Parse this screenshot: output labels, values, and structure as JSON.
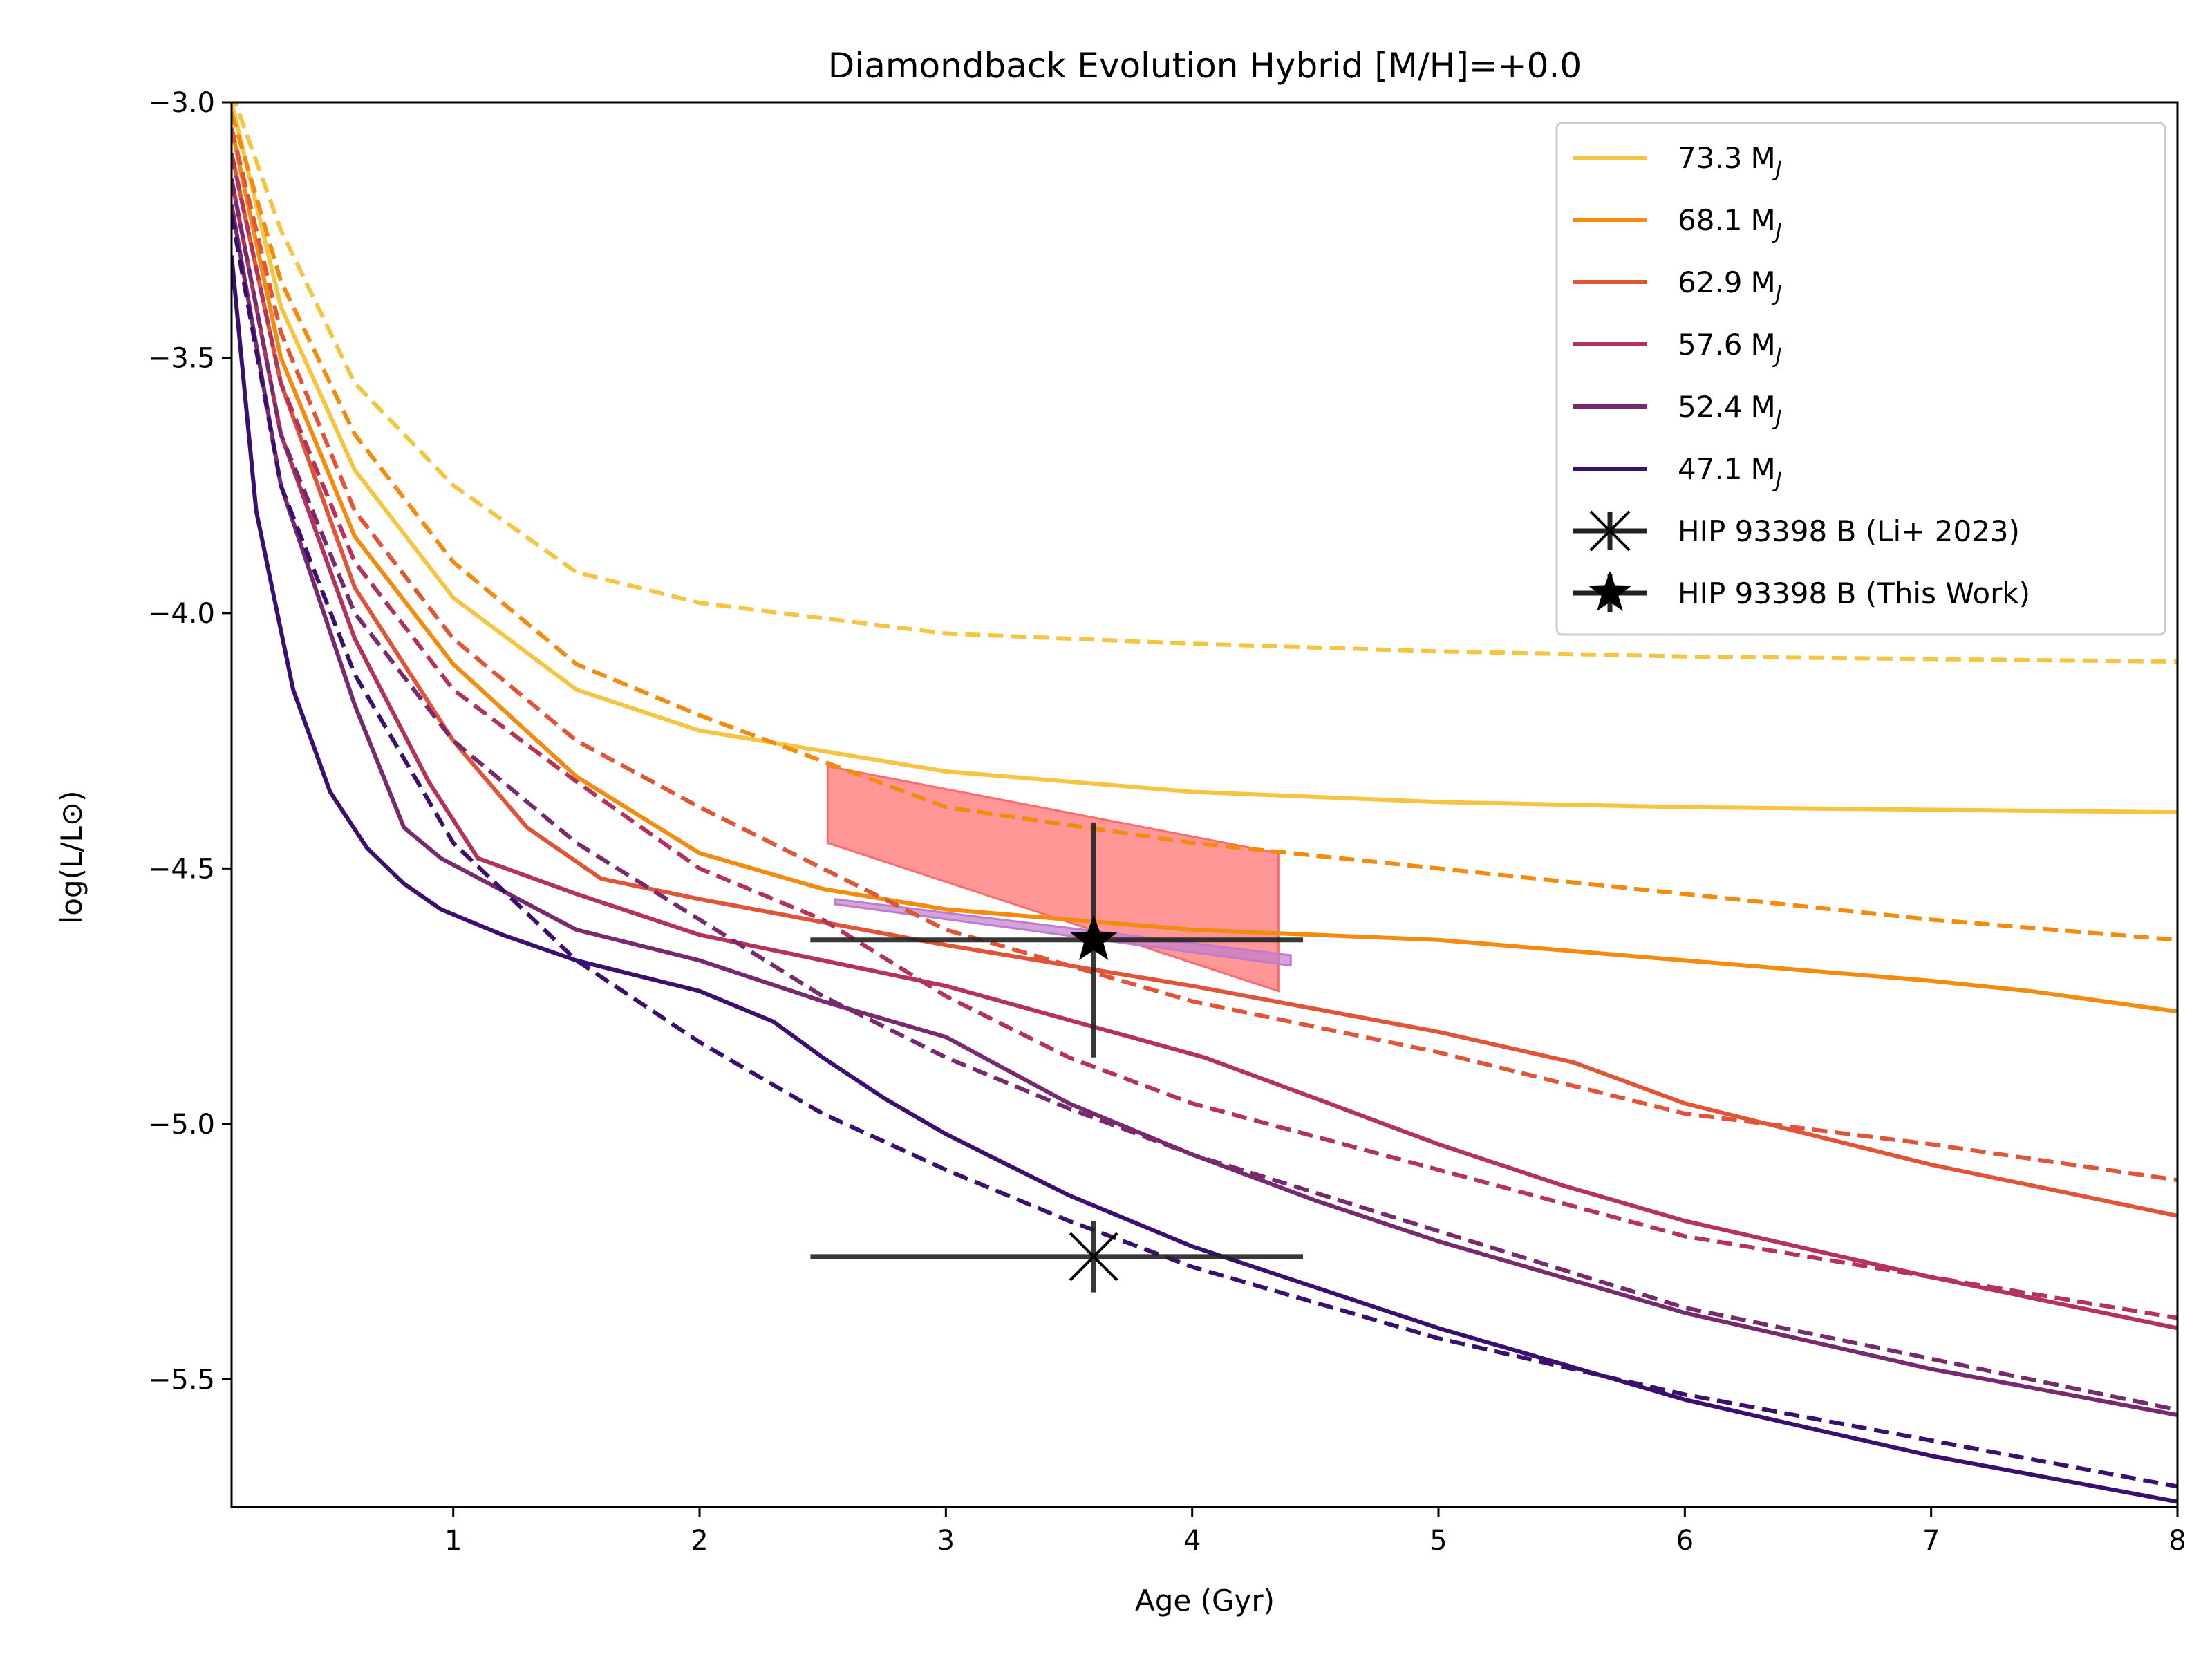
{
  "chart_data": {
    "type": "line",
    "title": "Diamondback Evolution Hybrid [M/H]=+0.0",
    "xlabel": "Age (Gyr)",
    "ylabel": "log(L/L⊙)",
    "xlim": [
      0.1,
      8
    ],
    "ylim": [
      -5.75,
      -3.0
    ],
    "xticks": [
      1,
      2,
      3,
      4,
      5,
      6,
      7,
      8
    ],
    "yticks": [
      -3.0,
      -3.5,
      -4.0,
      -4.5,
      -5.0,
      -5.5
    ],
    "xtick_labels": [
      "1",
      "2",
      "3",
      "4",
      "5",
      "6",
      "7",
      "8"
    ],
    "ytick_labels": [
      "−3.0",
      "−3.5",
      "−4.0",
      "−4.5",
      "−5.0",
      "−5.5"
    ],
    "legend_position": "top-right",
    "series": [
      {
        "name": "73.3",
        "unit": "J",
        "color": "#f5c542",
        "solid": [
          [
            0.1,
            -3.0
          ],
          [
            0.3,
            -3.4
          ],
          [
            0.6,
            -3.72
          ],
          [
            1.0,
            -3.97
          ],
          [
            1.5,
            -4.15
          ],
          [
            2.0,
            -4.23
          ],
          [
            2.5,
            -4.27
          ],
          [
            3.0,
            -4.31
          ],
          [
            4.0,
            -4.35
          ],
          [
            5.0,
            -4.37
          ],
          [
            6.0,
            -4.38
          ],
          [
            7.0,
            -4.385
          ],
          [
            8.0,
            -4.39
          ]
        ],
        "dashed": [
          [
            0.1,
            -2.98
          ],
          [
            0.3,
            -3.25
          ],
          [
            0.6,
            -3.55
          ],
          [
            1.0,
            -3.75
          ],
          [
            1.5,
            -3.92
          ],
          [
            2.0,
            -3.98
          ],
          [
            3.0,
            -4.04
          ],
          [
            4.0,
            -4.06
          ],
          [
            5.0,
            -4.075
          ],
          [
            6.0,
            -4.085
          ],
          [
            7.0,
            -4.09
          ],
          [
            8.0,
            -4.095
          ]
        ]
      },
      {
        "name": "68.1",
        "unit": "J",
        "color": "#f38b0e",
        "solid": [
          [
            0.1,
            -3.05
          ],
          [
            0.3,
            -3.5
          ],
          [
            0.6,
            -3.85
          ],
          [
            1.0,
            -4.1
          ],
          [
            1.5,
            -4.32
          ],
          [
            2.0,
            -4.47
          ],
          [
            2.5,
            -4.54
          ],
          [
            3.0,
            -4.58
          ],
          [
            4.0,
            -4.62
          ],
          [
            5.0,
            -4.64
          ],
          [
            6.0,
            -4.68
          ],
          [
            7.0,
            -4.72
          ],
          [
            7.4,
            -4.74
          ],
          [
            8.0,
            -4.78
          ]
        ],
        "dashed": [
          [
            0.1,
            -3.02
          ],
          [
            0.3,
            -3.35
          ],
          [
            0.6,
            -3.65
          ],
          [
            1.0,
            -3.9
          ],
          [
            1.5,
            -4.1
          ],
          [
            2.0,
            -4.2
          ],
          [
            3.0,
            -4.38
          ],
          [
            4.0,
            -4.45
          ],
          [
            5.0,
            -4.5
          ],
          [
            6.0,
            -4.55
          ],
          [
            7.0,
            -4.6
          ],
          [
            8.0,
            -4.64
          ]
        ]
      },
      {
        "name": "62.9",
        "unit": "J",
        "color": "#e05438",
        "solid": [
          [
            0.1,
            -3.1
          ],
          [
            0.3,
            -3.55
          ],
          [
            0.6,
            -3.95
          ],
          [
            1.0,
            -4.25
          ],
          [
            1.3,
            -4.42
          ],
          [
            1.6,
            -4.52
          ],
          [
            2.0,
            -4.56
          ],
          [
            3.0,
            -4.65
          ],
          [
            4.0,
            -4.73
          ],
          [
            5.0,
            -4.82
          ],
          [
            5.55,
            -4.88
          ],
          [
            6.0,
            -4.96
          ],
          [
            7.0,
            -5.08
          ],
          [
            8.0,
            -5.18
          ]
        ],
        "dashed": [
          [
            0.1,
            -3.05
          ],
          [
            0.3,
            -3.45
          ],
          [
            0.6,
            -3.8
          ],
          [
            1.0,
            -4.05
          ],
          [
            1.5,
            -4.25
          ],
          [
            2.0,
            -4.38
          ],
          [
            3.0,
            -4.62
          ],
          [
            4.0,
            -4.76
          ],
          [
            5.0,
            -4.86
          ],
          [
            6.0,
            -4.98
          ],
          [
            7.0,
            -5.04
          ],
          [
            8.0,
            -5.11
          ]
        ]
      },
      {
        "name": "57.6",
        "unit": "J",
        "color": "#b5325a",
        "solid": [
          [
            0.1,
            -3.15
          ],
          [
            0.3,
            -3.65
          ],
          [
            0.6,
            -4.05
          ],
          [
            0.9,
            -4.33
          ],
          [
            1.1,
            -4.48
          ],
          [
            1.5,
            -4.55
          ],
          [
            2.0,
            -4.63
          ],
          [
            3.0,
            -4.73
          ],
          [
            4.05,
            -4.87
          ],
          [
            4.5,
            -4.95
          ],
          [
            5.0,
            -5.04
          ],
          [
            5.5,
            -5.12
          ],
          [
            6.0,
            -5.19
          ],
          [
            7.0,
            -5.3
          ],
          [
            8.0,
            -5.4
          ]
        ],
        "dashed": [
          [
            0.1,
            -3.1
          ],
          [
            0.3,
            -3.55
          ],
          [
            0.6,
            -3.9
          ],
          [
            1.0,
            -4.15
          ],
          [
            1.5,
            -4.33
          ],
          [
            2.0,
            -4.5
          ],
          [
            2.5,
            -4.6
          ],
          [
            3.0,
            -4.75
          ],
          [
            3.5,
            -4.87
          ],
          [
            4.0,
            -4.96
          ],
          [
            5.0,
            -5.09
          ],
          [
            6.0,
            -5.22
          ],
          [
            7.0,
            -5.3
          ],
          [
            8.0,
            -5.38
          ]
        ]
      },
      {
        "name": "52.4",
        "unit": "J",
        "color": "#772a6d",
        "solid": [
          [
            0.1,
            -3.2
          ],
          [
            0.3,
            -3.75
          ],
          [
            0.6,
            -4.18
          ],
          [
            0.8,
            -4.42
          ],
          [
            0.95,
            -4.48
          ],
          [
            1.5,
            -4.62
          ],
          [
            2.0,
            -4.68
          ],
          [
            2.5,
            -4.76
          ],
          [
            3.0,
            -4.83
          ],
          [
            3.5,
            -4.96
          ],
          [
            4.0,
            -5.06
          ],
          [
            4.5,
            -5.15
          ],
          [
            5.0,
            -5.23
          ],
          [
            6.0,
            -5.37
          ],
          [
            7.0,
            -5.48
          ],
          [
            8.0,
            -5.57
          ]
        ],
        "dashed": [
          [
            0.1,
            -3.15
          ],
          [
            0.3,
            -3.65
          ],
          [
            0.6,
            -4.0
          ],
          [
            1.0,
            -4.25
          ],
          [
            1.5,
            -4.45
          ],
          [
            2.0,
            -4.6
          ],
          [
            2.5,
            -4.75
          ],
          [
            3.0,
            -4.87
          ],
          [
            3.5,
            -4.97
          ],
          [
            4.0,
            -5.06
          ],
          [
            5.0,
            -5.21
          ],
          [
            6.0,
            -5.36
          ],
          [
            7.0,
            -5.46
          ],
          [
            8.0,
            -5.56
          ]
        ]
      },
      {
        "name": "47.1",
        "unit": "J",
        "color": "#3b0f6f",
        "solid": [
          [
            0.1,
            -3.3
          ],
          [
            0.2,
            -3.8
          ],
          [
            0.35,
            -4.15
          ],
          [
            0.5,
            -4.35
          ],
          [
            0.65,
            -4.46
          ],
          [
            0.8,
            -4.53
          ],
          [
            0.95,
            -4.58
          ],
          [
            1.2,
            -4.63
          ],
          [
            1.5,
            -4.68
          ],
          [
            2.0,
            -4.74
          ],
          [
            2.3,
            -4.8
          ],
          [
            2.5,
            -4.87
          ],
          [
            2.75,
            -4.95
          ],
          [
            3.0,
            -5.02
          ],
          [
            3.5,
            -5.14
          ],
          [
            4.0,
            -5.24
          ],
          [
            4.5,
            -5.32
          ],
          [
            5.0,
            -5.4
          ],
          [
            6.0,
            -5.54
          ],
          [
            7.0,
            -5.65
          ],
          [
            8.0,
            -5.74
          ]
        ],
        "dashed": [
          [
            0.1,
            -3.22
          ],
          [
            0.3,
            -3.75
          ],
          [
            0.6,
            -4.12
          ],
          [
            1.0,
            -4.45
          ],
          [
            1.5,
            -4.68
          ],
          [
            2.0,
            -4.84
          ],
          [
            2.5,
            -4.98
          ],
          [
            3.0,
            -5.09
          ],
          [
            3.5,
            -5.19
          ],
          [
            4.0,
            -5.28
          ],
          [
            5.0,
            -5.42
          ],
          [
            6.0,
            -5.53
          ],
          [
            7.0,
            -5.62
          ],
          [
            8.0,
            -5.71
          ]
        ]
      }
    ],
    "regions": [
      {
        "name": "red-constraint",
        "color": "#ff6b6b",
        "points": [
          [
            2.52,
            -4.3
          ],
          [
            4.35,
            -4.47
          ],
          [
            4.35,
            -4.74
          ],
          [
            2.52,
            -4.45
          ]
        ]
      },
      {
        "name": "purple-constraint",
        "color": "#c07ccc",
        "points": [
          [
            2.55,
            -4.56
          ],
          [
            4.4,
            -4.67
          ],
          [
            4.4,
            -4.69
          ],
          [
            2.55,
            -4.57
          ]
        ]
      }
    ],
    "points": [
      {
        "label": "HIP 93398 B (Li+ 2023)",
        "marker": "x",
        "x": 3.6,
        "y": -5.26,
        "xerr": [
          1.15,
          0.85
        ],
        "yerr": [
          0.07,
          0.07
        ]
      },
      {
        "label": "HIP 93398 B (This Work)",
        "marker": "star",
        "x": 3.6,
        "y": -4.64,
        "xerr": [
          1.15,
          0.85
        ],
        "yerr": [
          0.23,
          0.23
        ]
      }
    ]
  }
}
